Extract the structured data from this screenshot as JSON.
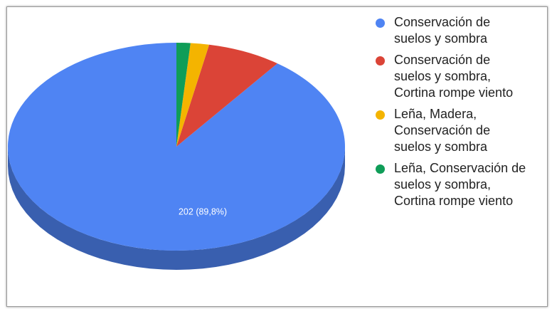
{
  "chart_data": {
    "type": "pie",
    "style": "3d",
    "title": "",
    "legend_position": "right",
    "slices": [
      {
        "label": "Conservación de\nsuelos y sombra",
        "value": 202,
        "percent": 89.8,
        "color": "#4f84f3",
        "data_label": "202 (89,8%)"
      },
      {
        "label": "Conservación de\nsuelos y sombra,\nCortina rompe viento",
        "value": 16,
        "percent": 7.1,
        "color": "#db4437",
        "data_label": ""
      },
      {
        "label": "Leña, Madera,\nConservación de\nsuelos y sombra",
        "value": 4,
        "percent": 1.8,
        "color": "#f4b400",
        "data_label": ""
      },
      {
        "label": "Leña, Conservación de\nsuelos y sombra,\nCortina rompe viento",
        "value": 3,
        "percent": 1.3,
        "color": "#0f9d58",
        "data_label": ""
      }
    ]
  }
}
